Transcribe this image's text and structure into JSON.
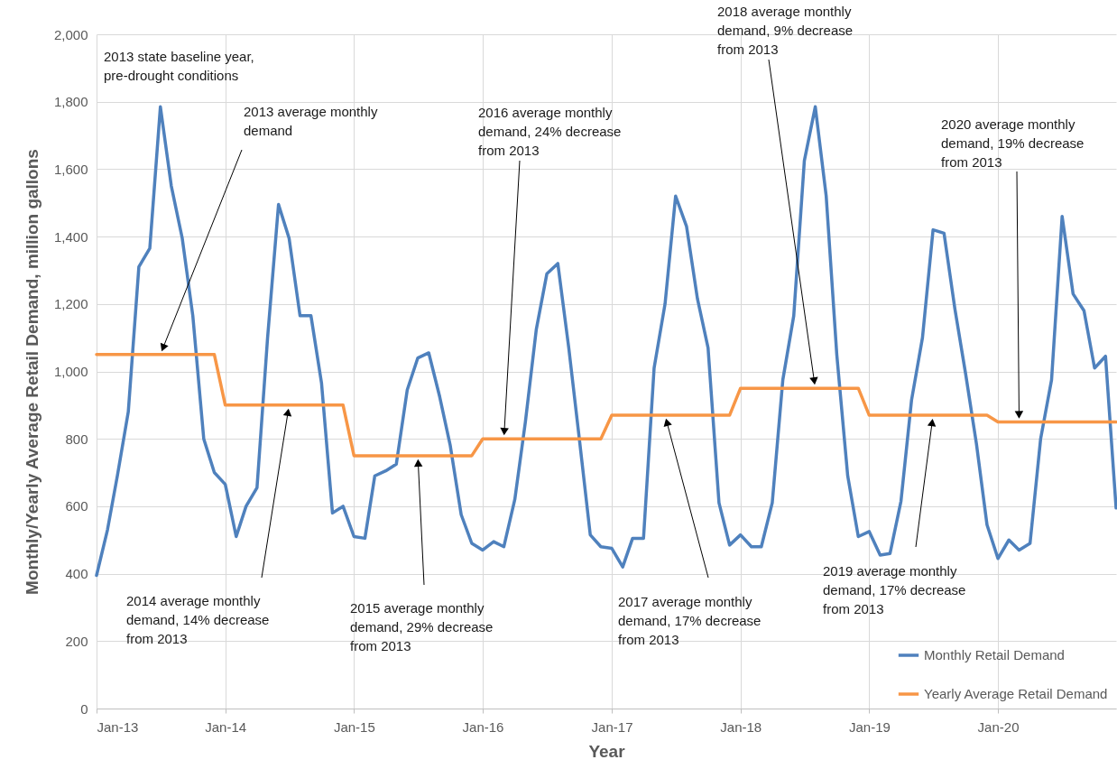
{
  "chart_data": {
    "type": "line",
    "xlabel": "Year",
    "ylabel": "Monthly/Yearly Average Retail Demand, million gallons",
    "x": [
      "2013-01",
      "2013-02",
      "2013-03",
      "2013-04",
      "2013-05",
      "2013-06",
      "2013-07",
      "2013-08",
      "2013-09",
      "2013-10",
      "2013-11",
      "2013-12",
      "2014-01",
      "2014-02",
      "2014-03",
      "2014-04",
      "2014-05",
      "2014-06",
      "2014-07",
      "2014-08",
      "2014-09",
      "2014-10",
      "2014-11",
      "2014-12",
      "2015-01",
      "2015-02",
      "2015-03",
      "2015-04",
      "2015-05",
      "2015-06",
      "2015-07",
      "2015-08",
      "2015-09",
      "2015-10",
      "2015-11",
      "2015-12",
      "2016-01",
      "2016-02",
      "2016-03",
      "2016-04",
      "2016-05",
      "2016-06",
      "2016-07",
      "2016-08",
      "2016-09",
      "2016-10",
      "2016-11",
      "2016-12",
      "2017-01",
      "2017-02",
      "2017-03",
      "2017-04",
      "2017-05",
      "2017-06",
      "2017-07",
      "2017-08",
      "2017-09",
      "2017-10",
      "2017-11",
      "2017-12",
      "2018-01",
      "2018-02",
      "2018-03",
      "2018-04",
      "2018-05",
      "2018-06",
      "2018-07",
      "2018-08",
      "2018-09",
      "2018-10",
      "2018-11",
      "2018-12",
      "2019-01",
      "2019-02",
      "2019-03",
      "2019-04",
      "2019-05",
      "2019-06",
      "2019-07",
      "2019-08",
      "2019-09",
      "2019-10",
      "2019-11",
      "2019-12",
      "2020-01",
      "2020-02",
      "2020-03",
      "2020-04",
      "2020-05",
      "2020-06",
      "2020-07",
      "2020-08",
      "2020-09",
      "2020-10",
      "2020-11",
      "2020-12"
    ],
    "series": [
      {
        "name": "Monthly Retail Demand",
        "color": "#4f81bd",
        "values": [
          395,
          530,
          690,
          880,
          1310,
          1365,
          1785,
          1550,
          1395,
          1165,
          800,
          700,
          665,
          510,
          600,
          655,
          1100,
          1495,
          1395,
          1165,
          1165,
          965,
          580,
          600,
          510,
          505,
          690,
          705,
          725,
          945,
          1040,
          1055,
          925,
          780,
          575,
          490,
          470,
          495,
          480,
          620,
          850,
          1125,
          1290,
          1320,
          1070,
          800,
          515,
          480,
          475,
          420,
          505,
          505,
          1010,
          1200,
          1520,
          1430,
          1215,
          1070,
          610,
          485,
          515,
          480,
          480,
          610,
          975,
          1165,
          1625,
          1785,
          1520,
          1050,
          690,
          510,
          525,
          455,
          460,
          615,
          915,
          1100,
          1420,
          1410,
          1185,
          995,
          785,
          545,
          445,
          500,
          470,
          490,
          800,
          975,
          1460,
          1230,
          1180,
          1010,
          1045,
          595
        ]
      },
      {
        "name": "Yearly Average Retail Demand",
        "color": "#f79646",
        "values": [
          1050,
          1050,
          1050,
          1050,
          1050,
          1050,
          1050,
          1050,
          1050,
          1050,
          1050,
          1050,
          900,
          900,
          900,
          900,
          900,
          900,
          900,
          900,
          900,
          900,
          900,
          900,
          750,
          750,
          750,
          750,
          750,
          750,
          750,
          750,
          750,
          750,
          750,
          750,
          800,
          800,
          800,
          800,
          800,
          800,
          800,
          800,
          800,
          800,
          800,
          800,
          870,
          870,
          870,
          870,
          870,
          870,
          870,
          870,
          870,
          870,
          870,
          870,
          950,
          950,
          950,
          950,
          950,
          950,
          950,
          950,
          950,
          950,
          950,
          950,
          870,
          870,
          870,
          870,
          870,
          870,
          870,
          870,
          870,
          870,
          870,
          870,
          850,
          850,
          850,
          850,
          850,
          850,
          850,
          850,
          850,
          850,
          850,
          850
        ]
      }
    ],
    "xlim": [
      "2013-01",
      "2020-12"
    ],
    "xticks": [
      {
        "value": "2013-01",
        "label": "Jan-13"
      },
      {
        "value": "2014-01",
        "label": "Jan-14"
      },
      {
        "value": "2015-01",
        "label": "Jan-15"
      },
      {
        "value": "2016-01",
        "label": "Jan-16"
      },
      {
        "value": "2017-01",
        "label": "Jan-17"
      },
      {
        "value": "2018-01",
        "label": "Jan-18"
      },
      {
        "value": "2019-01",
        "label": "Jan-19"
      },
      {
        "value": "2020-01",
        "label": "Jan-20"
      }
    ],
    "ylim": [
      0,
      2000
    ],
    "yticks": [
      0,
      200,
      400,
      600,
      800,
      {
        "value": 1000,
        "label": "1,000"
      },
      {
        "value": 1200,
        "label": "1,200"
      },
      {
        "value": 1400,
        "label": "1,400"
      },
      {
        "value": 1600,
        "label": "1,600"
      },
      {
        "value": 1800,
        "label": "1,800"
      },
      {
        "value": 2000,
        "label": "2,000"
      }
    ],
    "grid": true,
    "legend": "bottom right",
    "annotations": [
      "2013 state baseline year, pre-drought conditions",
      {
        "text": "2013 average monthly demand",
        "x": "2013-07",
        "y": 1050
      },
      {
        "text": "2014 average monthly demand, 14% decrease from 2013",
        "x": "2014-07",
        "y": 900
      },
      {
        "text": "2015 average monthly demand, 29% decrease from 2013",
        "x": "2015-07",
        "y": 750
      },
      {
        "text": "2016 average monthly demand, 24% decrease from 2013",
        "x": "2016-03",
        "y": 800
      },
      {
        "text": "2017 average monthly demand, 17% decrease from 2013",
        "x": "2017-06",
        "y": 870
      },
      {
        "text": "2018 average monthly demand, 9% decrease from 2013",
        "x": "2018-08",
        "y": 950
      },
      {
        "text": "2019 average monthly demand, 17% decrease from 2013",
        "x": "2019-07",
        "y": 870
      },
      {
        "text": "2020 average monthly demand, 19% decrease from 2013",
        "x": "2020-03",
        "y": 850
      }
    ]
  }
}
